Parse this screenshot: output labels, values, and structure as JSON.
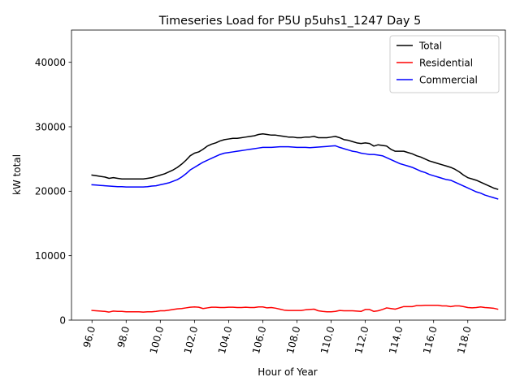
{
  "chart_data": {
    "type": "line",
    "title": "Timeseries Load for P5U p5uhs1_1247  Day 5",
    "xlabel": "Hour of Year",
    "ylabel": "kW total",
    "xlim": [
      94.8,
      120.2
    ],
    "ylim": [
      0,
      45000
    ],
    "xticks": [
      96,
      98,
      100,
      102,
      104,
      106,
      108,
      110,
      112,
      114,
      116,
      118
    ],
    "xtick_labels": [
      "96.0",
      "98.0",
      "100.0",
      "102.0",
      "104.0",
      "106.0",
      "108.0",
      "110.0",
      "112.0",
      "114.0",
      "116.0",
      "118.0"
    ],
    "yticks": [
      0,
      10000,
      20000,
      30000,
      40000
    ],
    "ytick_labels": [
      "0",
      "10000",
      "20000",
      "30000",
      "40000"
    ],
    "grid": false,
    "legend_position": "top-right",
    "x": [
      96,
      96.25,
      96.5,
      96.75,
      97,
      97.25,
      97.5,
      97.75,
      98,
      98.25,
      98.5,
      98.75,
      99,
      99.25,
      99.5,
      99.75,
      100,
      100.25,
      100.5,
      100.75,
      101,
      101.25,
      101.5,
      101.75,
      102,
      102.25,
      102.5,
      102.75,
      103,
      103.25,
      103.5,
      103.75,
      104,
      104.25,
      104.5,
      104.75,
      105,
      105.25,
      105.5,
      105.75,
      106,
      106.25,
      106.5,
      106.75,
      107,
      107.25,
      107.5,
      107.75,
      108,
      108.25,
      108.5,
      108.75,
      109,
      109.25,
      109.5,
      109.75,
      110,
      110.25,
      110.5,
      110.75,
      111,
      111.25,
      111.5,
      111.75,
      112,
      112.25,
      112.5,
      112.75,
      113,
      113.25,
      113.5,
      113.75,
      114,
      114.25,
      114.5,
      114.75,
      115,
      115.25,
      115.5,
      115.75,
      116,
      116.25,
      116.5,
      116.75,
      117,
      117.25,
      117.5,
      117.75,
      118,
      118.25,
      118.5,
      118.75,
      119,
      119.25,
      119.5,
      119.75
    ],
    "series": [
      {
        "name": "Total",
        "color": "#000000",
        "values": [
          22500,
          22400,
          22300,
          22200,
          22000,
          22100,
          22000,
          21900,
          21900,
          21900,
          21900,
          21900,
          21900,
          22000,
          22100,
          22300,
          22500,
          22700,
          23000,
          23300,
          23700,
          24200,
          24800,
          25500,
          25900,
          26100,
          26500,
          27000,
          27300,
          27500,
          27800,
          28000,
          28100,
          28200,
          28200,
          28300,
          28400,
          28500,
          28600,
          28800,
          28900,
          28800,
          28700,
          28700,
          28600,
          28500,
          28400,
          28400,
          28300,
          28300,
          28400,
          28400,
          28500,
          28300,
          28300,
          28300,
          28400,
          28500,
          28300,
          28000,
          27900,
          27700,
          27500,
          27400,
          27500,
          27400,
          27000,
          27200,
          27100,
          27000,
          26500,
          26200,
          26200,
          26200,
          26000,
          25800,
          25500,
          25300,
          25000,
          24700,
          24500,
          24300,
          24100,
          23900,
          23700,
          23400,
          23000,
          22500,
          22100,
          21900,
          21700,
          21400,
          21100,
          20800,
          20500,
          20300
        ]
      },
      {
        "name": "Residential",
        "color": "#ff0000",
        "values": [
          1500,
          1450,
          1400,
          1350,
          1250,
          1400,
          1350,
          1350,
          1300,
          1300,
          1300,
          1300,
          1250,
          1300,
          1300,
          1350,
          1450,
          1450,
          1550,
          1650,
          1750,
          1800,
          1900,
          2000,
          2050,
          2000,
          1800,
          1900,
          2000,
          2000,
          1950,
          1950,
          2000,
          2000,
          1950,
          1950,
          2000,
          1950,
          1950,
          2050,
          2050,
          1900,
          1950,
          1850,
          1700,
          1550,
          1500,
          1500,
          1500,
          1500,
          1600,
          1650,
          1700,
          1450,
          1350,
          1300,
          1300,
          1350,
          1500,
          1450,
          1450,
          1450,
          1400,
          1350,
          1650,
          1650,
          1350,
          1450,
          1650,
          1900,
          1800,
          1700,
          1900,
          2100,
          2100,
          2100,
          2250,
          2250,
          2300,
          2300,
          2300,
          2300,
          2200,
          2200,
          2100,
          2200,
          2200,
          2100,
          1950,
          1900,
          1950,
          2050,
          1950,
          1900,
          1850,
          1700
        ]
      },
      {
        "name": "Commercial",
        "color": "#0000ff",
        "values": [
          21000,
          20950,
          20900,
          20850,
          20800,
          20750,
          20700,
          20700,
          20650,
          20650,
          20650,
          20650,
          20650,
          20700,
          20800,
          20850,
          21000,
          21150,
          21300,
          21550,
          21800,
          22200,
          22700,
          23300,
          23700,
          24100,
          24500,
          24800,
          25100,
          25400,
          25700,
          25900,
          26000,
          26100,
          26200,
          26300,
          26400,
          26500,
          26600,
          26700,
          26800,
          26800,
          26800,
          26850,
          26900,
          26900,
          26900,
          26850,
          26800,
          26800,
          26800,
          26750,
          26800,
          26850,
          26900,
          26950,
          27000,
          27050,
          26800,
          26600,
          26400,
          26200,
          26100,
          25900,
          25800,
          25700,
          25700,
          25600,
          25500,
          25200,
          24900,
          24600,
          24300,
          24100,
          23900,
          23700,
          23400,
          23100,
          22900,
          22600,
          22400,
          22200,
          22000,
          21800,
          21700,
          21400,
          21100,
          20800,
          20500,
          20200,
          19900,
          19700,
          19400,
          19200,
          19000,
          18800
        ]
      }
    ]
  }
}
